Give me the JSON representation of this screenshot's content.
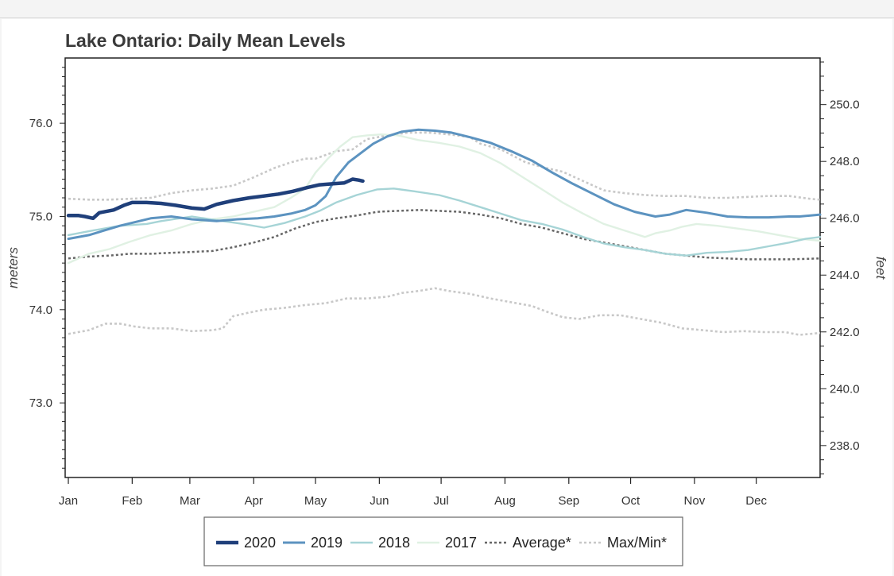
{
  "chart_data": {
    "type": "line",
    "title": "Lake Ontario: Daily Mean Levels",
    "ylabel_left": "meters",
    "ylabel_right": "feet",
    "x_ticks": [
      "Jan",
      "Feb",
      "Mar",
      "Apr",
      "May",
      "Jun",
      "Jul",
      "Aug",
      "Sep",
      "Oct",
      "Nov",
      "Dec"
    ],
    "y_ticks_left": [
      "73.0",
      "74.0",
      "75.0",
      "76.0"
    ],
    "y_ticks_right": [
      "238.0",
      "240.0",
      "242.0",
      "244.0",
      "246.0",
      "248.0",
      "250.0"
    ],
    "ylim_meters": [
      72.2,
      76.7
    ],
    "grid": false,
    "legend_placement": "bottom-center",
    "series": [
      {
        "name": "2020",
        "color": "#1f3f7a",
        "width": 4.5,
        "dash": "",
        "points": [
          [
            0,
            75.01
          ],
          [
            5,
            75.01
          ],
          [
            8,
            75.0
          ],
          [
            12,
            74.98
          ],
          [
            15,
            75.04
          ],
          [
            22,
            75.07
          ],
          [
            27,
            75.12
          ],
          [
            31,
            75.15
          ],
          [
            38,
            75.15
          ],
          [
            45,
            75.14
          ],
          [
            52,
            75.12
          ],
          [
            60,
            75.09
          ],
          [
            66,
            75.08
          ],
          [
            72,
            75.13
          ],
          [
            80,
            75.17
          ],
          [
            88,
            75.2
          ],
          [
            95,
            75.22
          ],
          [
            102,
            75.24
          ],
          [
            109,
            75.27
          ],
          [
            116,
            75.31
          ],
          [
            122,
            75.34
          ],
          [
            128,
            75.35
          ],
          [
            134,
            75.36
          ],
          [
            138,
            75.4
          ],
          [
            141,
            75.39
          ],
          [
            143,
            75.38
          ]
        ]
      },
      {
        "name": "2019",
        "color": "#5c93c0",
        "width": 3,
        "dash": "",
        "points": [
          [
            0,
            74.76
          ],
          [
            10,
            74.8
          ],
          [
            25,
            74.9
          ],
          [
            40,
            74.98
          ],
          [
            50,
            75.0
          ],
          [
            60,
            74.97
          ],
          [
            72,
            74.95
          ],
          [
            82,
            74.97
          ],
          [
            92,
            74.98
          ],
          [
            100,
            75.0
          ],
          [
            108,
            75.03
          ],
          [
            115,
            75.07
          ],
          [
            120,
            75.12
          ],
          [
            125,
            75.22
          ],
          [
            130,
            75.42
          ],
          [
            136,
            75.58
          ],
          [
            142,
            75.68
          ],
          [
            148,
            75.78
          ],
          [
            155,
            75.86
          ],
          [
            162,
            75.91
          ],
          [
            170,
            75.93
          ],
          [
            178,
            75.92
          ],
          [
            186,
            75.9
          ],
          [
            195,
            75.85
          ],
          [
            205,
            75.79
          ],
          [
            215,
            75.7
          ],
          [
            225,
            75.6
          ],
          [
            235,
            75.47
          ],
          [
            245,
            75.35
          ],
          [
            255,
            75.24
          ],
          [
            265,
            75.13
          ],
          [
            275,
            75.05
          ],
          [
            285,
            75.0
          ],
          [
            292,
            75.02
          ],
          [
            300,
            75.07
          ],
          [
            310,
            75.04
          ],
          [
            320,
            75.0
          ],
          [
            330,
            74.99
          ],
          [
            340,
            74.99
          ],
          [
            350,
            75.0
          ],
          [
            355,
            75.0
          ],
          [
            365,
            75.02
          ]
        ]
      },
      {
        "name": "2018",
        "color": "#a6d4d6",
        "width": 2.4,
        "dash": "",
        "points": [
          [
            0,
            74.8
          ],
          [
            12,
            74.85
          ],
          [
            25,
            74.9
          ],
          [
            38,
            74.92
          ],
          [
            45,
            74.95
          ],
          [
            60,
            75.0
          ],
          [
            72,
            74.96
          ],
          [
            85,
            74.92
          ],
          [
            95,
            74.88
          ],
          [
            105,
            74.93
          ],
          [
            115,
            75.0
          ],
          [
            122,
            75.06
          ],
          [
            130,
            75.15
          ],
          [
            140,
            75.23
          ],
          [
            150,
            75.29
          ],
          [
            158,
            75.3
          ],
          [
            168,
            75.27
          ],
          [
            180,
            75.23
          ],
          [
            190,
            75.17
          ],
          [
            200,
            75.1
          ],
          [
            210,
            75.03
          ],
          [
            220,
            74.96
          ],
          [
            230,
            74.92
          ],
          [
            240,
            74.86
          ],
          [
            250,
            74.78
          ],
          [
            260,
            74.71
          ],
          [
            270,
            74.67
          ],
          [
            280,
            74.64
          ],
          [
            290,
            74.6
          ],
          [
            300,
            74.58
          ],
          [
            310,
            74.61
          ],
          [
            320,
            74.62
          ],
          [
            330,
            74.64
          ],
          [
            340,
            74.68
          ],
          [
            350,
            74.72
          ],
          [
            358,
            74.76
          ],
          [
            365,
            74.78
          ]
        ]
      },
      {
        "name": "2017",
        "color": "#e0f1e3",
        "width": 2.4,
        "dash": "",
        "points": [
          [
            0,
            74.5
          ],
          [
            10,
            74.6
          ],
          [
            20,
            74.65
          ],
          [
            30,
            74.73
          ],
          [
            40,
            74.8
          ],
          [
            50,
            74.85
          ],
          [
            60,
            74.92
          ],
          [
            70,
            74.97
          ],
          [
            80,
            75.0
          ],
          [
            90,
            75.05
          ],
          [
            100,
            75.1
          ],
          [
            108,
            75.2
          ],
          [
            115,
            75.3
          ],
          [
            120,
            75.47
          ],
          [
            126,
            75.62
          ],
          [
            132,
            75.75
          ],
          [
            138,
            75.85
          ],
          [
            145,
            75.87
          ],
          [
            152,
            75.88
          ],
          [
            160,
            75.87
          ],
          [
            170,
            75.82
          ],
          [
            180,
            75.79
          ],
          [
            190,
            75.75
          ],
          [
            200,
            75.68
          ],
          [
            210,
            75.57
          ],
          [
            220,
            75.43
          ],
          [
            230,
            75.29
          ],
          [
            240,
            75.15
          ],
          [
            250,
            75.03
          ],
          [
            260,
            74.92
          ],
          [
            270,
            74.85
          ],
          [
            280,
            74.78
          ],
          [
            285,
            74.82
          ],
          [
            292,
            74.85
          ],
          [
            298,
            74.89
          ],
          [
            305,
            74.92
          ],
          [
            315,
            74.9
          ],
          [
            325,
            74.87
          ],
          [
            335,
            74.84
          ],
          [
            345,
            74.8
          ],
          [
            355,
            74.76
          ],
          [
            365,
            74.74
          ]
        ]
      },
      {
        "name": "Average*",
        "color": "#666666",
        "width": 2.5,
        "dash": "3,3",
        "points": [
          [
            0,
            74.55
          ],
          [
            10,
            74.57
          ],
          [
            20,
            74.58
          ],
          [
            30,
            74.6
          ],
          [
            40,
            74.6
          ],
          [
            50,
            74.61
          ],
          [
            60,
            74.62
          ],
          [
            70,
            74.63
          ],
          [
            80,
            74.67
          ],
          [
            90,
            74.72
          ],
          [
            100,
            74.78
          ],
          [
            110,
            74.87
          ],
          [
            120,
            74.94
          ],
          [
            130,
            74.98
          ],
          [
            140,
            75.01
          ],
          [
            150,
            75.05
          ],
          [
            160,
            75.06
          ],
          [
            170,
            75.07
          ],
          [
            180,
            75.06
          ],
          [
            190,
            75.05
          ],
          [
            200,
            75.02
          ],
          [
            210,
            74.98
          ],
          [
            220,
            74.92
          ],
          [
            230,
            74.88
          ],
          [
            240,
            74.82
          ],
          [
            250,
            74.76
          ],
          [
            260,
            74.72
          ],
          [
            270,
            74.68
          ],
          [
            280,
            74.64
          ],
          [
            290,
            74.6
          ],
          [
            300,
            74.58
          ],
          [
            310,
            74.56
          ],
          [
            320,
            74.55
          ],
          [
            330,
            74.54
          ],
          [
            340,
            74.54
          ],
          [
            350,
            74.54
          ],
          [
            365,
            74.55
          ]
        ]
      },
      {
        "name": "Max/Min*",
        "color": "#c8c8c8",
        "width": 2.6,
        "dash": "3,3",
        "points": [
          [
            0,
            75.19
          ],
          [
            10,
            75.18
          ],
          [
            20,
            75.18
          ],
          [
            30,
            75.19
          ],
          [
            40,
            75.2
          ],
          [
            50,
            75.25
          ],
          [
            60,
            75.28
          ],
          [
            70,
            75.3
          ],
          [
            80,
            75.33
          ],
          [
            90,
            75.42
          ],
          [
            100,
            75.52
          ],
          [
            108,
            75.58
          ],
          [
            115,
            75.62
          ],
          [
            120,
            75.62
          ],
          [
            130,
            75.7
          ],
          [
            138,
            75.72
          ],
          [
            145,
            75.83
          ],
          [
            155,
            75.87
          ],
          [
            165,
            75.9
          ],
          [
            175,
            75.9
          ],
          [
            185,
            75.88
          ],
          [
            195,
            75.85
          ],
          [
            200,
            75.78
          ],
          [
            210,
            75.72
          ],
          [
            222,
            75.58
          ],
          [
            232,
            75.52
          ],
          [
            240,
            75.48
          ],
          [
            250,
            75.38
          ],
          [
            260,
            75.28
          ],
          [
            270,
            75.25
          ],
          [
            280,
            75.23
          ],
          [
            290,
            75.22
          ],
          [
            300,
            75.22
          ],
          [
            310,
            75.2
          ],
          [
            320,
            75.2
          ],
          [
            330,
            75.21
          ],
          [
            340,
            75.22
          ],
          [
            350,
            75.22
          ],
          [
            360,
            75.19
          ],
          [
            365,
            75.18
          ]
        ],
        "min_points": [
          [
            0,
            73.74
          ],
          [
            10,
            73.78
          ],
          [
            18,
            73.85
          ],
          [
            25,
            73.85
          ],
          [
            32,
            73.82
          ],
          [
            40,
            73.8
          ],
          [
            50,
            73.8
          ],
          [
            60,
            73.77
          ],
          [
            70,
            73.78
          ],
          [
            75,
            73.8
          ],
          [
            80,
            73.93
          ],
          [
            88,
            73.97
          ],
          [
            95,
            74.0
          ],
          [
            105,
            74.02
          ],
          [
            115,
            74.05
          ],
          [
            125,
            74.07
          ],
          [
            135,
            74.12
          ],
          [
            145,
            74.12
          ],
          [
            155,
            74.14
          ],
          [
            162,
            74.18
          ],
          [
            170,
            74.2
          ],
          [
            178,
            74.23
          ],
          [
            185,
            74.2
          ],
          [
            195,
            74.17
          ],
          [
            205,
            74.12
          ],
          [
            215,
            74.08
          ],
          [
            225,
            74.04
          ],
          [
            232,
            73.98
          ],
          [
            240,
            73.92
          ],
          [
            248,
            73.9
          ],
          [
            258,
            73.94
          ],
          [
            268,
            73.94
          ],
          [
            278,
            73.9
          ],
          [
            288,
            73.86
          ],
          [
            298,
            73.8
          ],
          [
            308,
            73.78
          ],
          [
            318,
            73.76
          ],
          [
            328,
            73.77
          ],
          [
            338,
            73.76
          ],
          [
            348,
            73.76
          ],
          [
            355,
            73.73
          ],
          [
            365,
            73.75
          ]
        ]
      }
    ]
  }
}
